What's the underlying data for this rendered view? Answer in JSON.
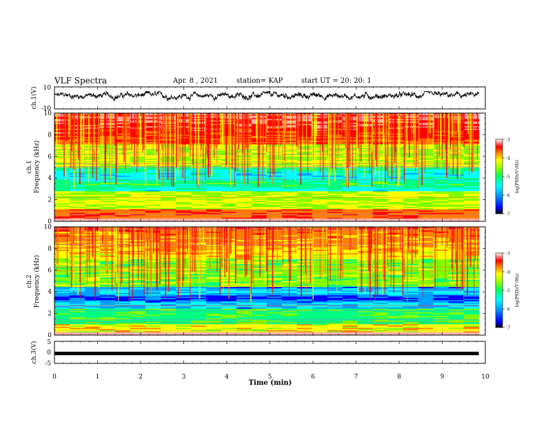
{
  "header": {
    "title": "VLF Spectra",
    "date": "Apr. 8 , 2021",
    "station": "station= KAP",
    "start": "start UT = 20: 20: 1"
  },
  "colors": {
    "spectrum_scale": [
      "#000000",
      "#0000ff",
      "#00a0ff",
      "#00ffff",
      "#00ff80",
      "#80ff00",
      "#ffff00",
      "#ff8000",
      "#ff0000",
      "#ffb0b0",
      "#ffffff"
    ],
    "trace": "#000000"
  },
  "chart_data": [
    {
      "type": "line",
      "name": "ch1-waveform",
      "ylabel": "ch.1(V)",
      "ylim": [
        -10,
        10
      ],
      "yticks": [
        "10",
        "-10"
      ],
      "xlim": [
        0,
        10
      ],
      "description_values": {
        "mean": 2,
        "amplitude_range": [
          -3,
          6
        ]
      }
    },
    {
      "type": "heatmap",
      "name": "ch1-spectrogram",
      "ylabel_top": "ch.1",
      "ylabel": "Frequency (kHz)",
      "ylim": [
        0,
        10
      ],
      "yticks": [
        "0",
        "2",
        "4",
        "6",
        "8",
        "10"
      ],
      "xlim": [
        0,
        9.85
      ],
      "colorbar": {
        "label": "log(PSD)(V²/Hz)",
        "range": [
          -7,
          -3
        ],
        "ticks": [
          "-3",
          "-4",
          "-5",
          "-6",
          "-7"
        ]
      }
    },
    {
      "type": "heatmap",
      "name": "ch2-spectrogram",
      "ylabel_top": "ch.2",
      "ylabel": "Frequency (kHz)",
      "ylim": [
        0,
        10
      ],
      "yticks": [
        "0",
        "2",
        "4",
        "6",
        "8",
        "10"
      ],
      "xlim": [
        0,
        9.85
      ],
      "colorbar": {
        "label": "log(PSD)(V²/Hz)",
        "range": [
          -7,
          -3
        ],
        "ticks": [
          "-3",
          "-4",
          "-5",
          "-6",
          "-7"
        ]
      }
    },
    {
      "type": "line",
      "name": "ch3-waveform",
      "ylabel": "ch.3(V)",
      "ylim": [
        -5,
        5
      ],
      "yticks": [
        "5",
        "0",
        "-5"
      ],
      "xlim": [
        0,
        10
      ],
      "constant_value": -0.5
    }
  ],
  "xaxis": {
    "label": "Time (min)",
    "ticks": [
      "0",
      "1",
      "2",
      "3",
      "4",
      "5",
      "6",
      "7",
      "8",
      "9",
      "10"
    ],
    "range": [
      0,
      10
    ]
  }
}
